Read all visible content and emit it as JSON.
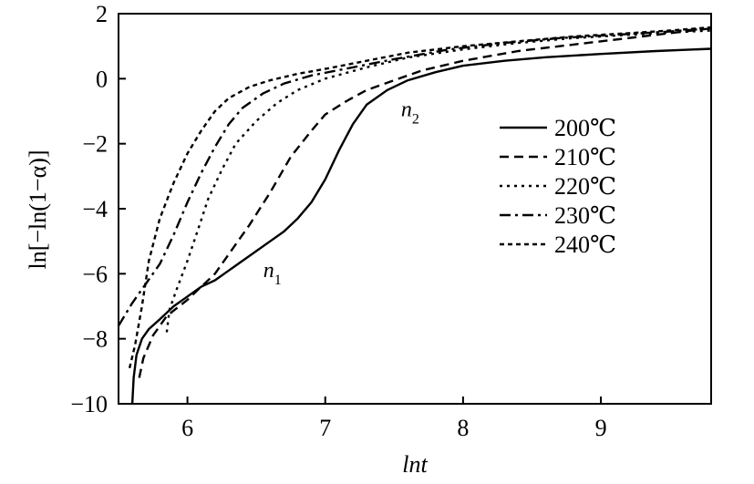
{
  "chart_data": {
    "type": "line",
    "title": "",
    "xlabel": "lnt",
    "ylabel": "ln[−ln(1−α)]",
    "xlim": [
      5.5,
      9.8
    ],
    "ylim": [
      -10,
      2
    ],
    "xticks": [
      6,
      7,
      8,
      9
    ],
    "yticks": [
      -10,
      -8,
      -6,
      -4,
      -2,
      0,
      2
    ],
    "xtick_labels": [
      "6",
      "7",
      "8",
      "9"
    ],
    "ytick_labels": [
      "−10",
      "−8",
      "−6",
      "−4",
      "−2",
      "0",
      "2"
    ],
    "grid": false,
    "legend_position": "right",
    "annotations": [
      {
        "text": "n",
        "sub": "1",
        "x": 6.55,
        "y": -6.1
      },
      {
        "text": "n",
        "sub": "2",
        "x": 7.55,
        "y": -1.15
      }
    ],
    "series": [
      {
        "name": "200℃",
        "dash": "solid",
        "points": [
          [
            5.6,
            -10
          ],
          [
            5.61,
            -9.2
          ],
          [
            5.63,
            -8.5
          ],
          [
            5.67,
            -8.0
          ],
          [
            5.72,
            -7.7
          ],
          [
            5.8,
            -7.4
          ],
          [
            5.9,
            -7.0
          ],
          [
            6.0,
            -6.7
          ],
          [
            6.1,
            -6.4
          ],
          [
            6.2,
            -6.2
          ],
          [
            6.3,
            -5.9
          ],
          [
            6.4,
            -5.6
          ],
          [
            6.5,
            -5.3
          ],
          [
            6.6,
            -5.0
          ],
          [
            6.7,
            -4.7
          ],
          [
            6.8,
            -4.3
          ],
          [
            6.9,
            -3.8
          ],
          [
            7.0,
            -3.1
          ],
          [
            7.1,
            -2.2
          ],
          [
            7.2,
            -1.4
          ],
          [
            7.3,
            -0.8
          ],
          [
            7.45,
            -0.35
          ],
          [
            7.6,
            -0.05
          ],
          [
            7.8,
            0.2
          ],
          [
            8.0,
            0.4
          ],
          [
            8.3,
            0.55
          ],
          [
            8.6,
            0.66
          ],
          [
            9.0,
            0.76
          ],
          [
            9.4,
            0.85
          ],
          [
            9.8,
            0.92
          ]
        ]
      },
      {
        "name": "210℃",
        "dash": "dashed",
        "points": [
          [
            5.65,
            -9.2
          ],
          [
            5.68,
            -8.6
          ],
          [
            5.75,
            -7.9
          ],
          [
            5.85,
            -7.3
          ],
          [
            6.0,
            -6.8
          ],
          [
            6.2,
            -6.0
          ],
          [
            6.3,
            -5.4
          ],
          [
            6.45,
            -4.5
          ],
          [
            6.6,
            -3.5
          ],
          [
            6.75,
            -2.4
          ],
          [
            6.9,
            -1.6
          ],
          [
            7.0,
            -1.1
          ],
          [
            7.15,
            -0.7
          ],
          [
            7.3,
            -0.35
          ],
          [
            7.5,
            -0.05
          ],
          [
            7.7,
            0.25
          ],
          [
            8.0,
            0.55
          ],
          [
            8.4,
            0.85
          ],
          [
            8.8,
            1.05
          ],
          [
            9.2,
            1.25
          ],
          [
            9.5,
            1.4
          ],
          [
            9.8,
            1.55
          ]
        ]
      },
      {
        "name": "220℃",
        "dash": "dotted",
        "points": [
          [
            5.85,
            -7.8
          ],
          [
            5.87,
            -7.1
          ],
          [
            5.92,
            -6.5
          ],
          [
            6.0,
            -5.6
          ],
          [
            6.08,
            -4.6
          ],
          [
            6.15,
            -3.7
          ],
          [
            6.25,
            -2.8
          ],
          [
            6.35,
            -2.0
          ],
          [
            6.5,
            -1.3
          ],
          [
            6.65,
            -0.75
          ],
          [
            6.8,
            -0.35
          ],
          [
            7.0,
            0.0
          ],
          [
            7.3,
            0.35
          ],
          [
            7.6,
            0.65
          ],
          [
            8.0,
            0.9
          ],
          [
            8.4,
            1.1
          ],
          [
            8.8,
            1.25
          ],
          [
            9.2,
            1.35
          ],
          [
            9.5,
            1.42
          ],
          [
            9.8,
            1.48
          ]
        ]
      },
      {
        "name": "230℃",
        "dash": "dashdot",
        "points": [
          [
            5.5,
            -7.6
          ],
          [
            5.6,
            -6.9
          ],
          [
            5.7,
            -6.3
          ],
          [
            5.8,
            -5.7
          ],
          [
            5.9,
            -4.8
          ],
          [
            6.0,
            -3.8
          ],
          [
            6.1,
            -2.9
          ],
          [
            6.2,
            -2.1
          ],
          [
            6.3,
            -1.4
          ],
          [
            6.4,
            -0.9
          ],
          [
            6.55,
            -0.45
          ],
          [
            6.7,
            -0.15
          ],
          [
            6.9,
            0.1
          ],
          [
            7.2,
            0.35
          ],
          [
            7.5,
            0.6
          ],
          [
            7.9,
            0.9
          ],
          [
            8.3,
            1.1
          ],
          [
            8.7,
            1.25
          ],
          [
            9.1,
            1.35
          ],
          [
            9.5,
            1.45
          ],
          [
            9.8,
            1.55
          ]
        ]
      },
      {
        "name": "240℃",
        "dash": "shortdash",
        "points": [
          [
            5.58,
            -8.9
          ],
          [
            5.62,
            -8.2
          ],
          [
            5.67,
            -7.0
          ],
          [
            5.72,
            -5.6
          ],
          [
            5.8,
            -4.3
          ],
          [
            5.9,
            -3.2
          ],
          [
            6.0,
            -2.3
          ],
          [
            6.1,
            -1.6
          ],
          [
            6.2,
            -1.0
          ],
          [
            6.3,
            -0.6
          ],
          [
            6.45,
            -0.25
          ],
          [
            6.6,
            -0.05
          ],
          [
            6.8,
            0.15
          ],
          [
            7.0,
            0.3
          ],
          [
            7.3,
            0.55
          ],
          [
            7.6,
            0.8
          ],
          [
            8.0,
            1.0
          ],
          [
            8.4,
            1.15
          ],
          [
            8.8,
            1.3
          ],
          [
            9.2,
            1.4
          ],
          [
            9.5,
            1.48
          ],
          [
            9.8,
            1.58
          ]
        ]
      }
    ]
  }
}
